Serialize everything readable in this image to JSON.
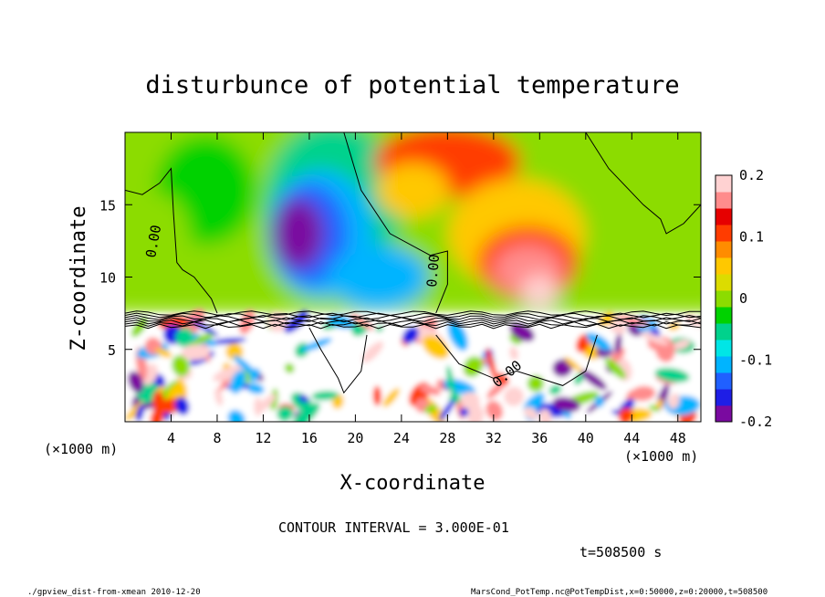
{
  "chart_data": {
    "type": "heatmap",
    "title": "disturbunce of potential temperature",
    "xlabel": "X-coordinate",
    "ylabel": "Z-coordinate",
    "x_unit": "(×1000 m)",
    "z_unit": "(×1000 m)",
    "xlim": [
      0,
      50
    ],
    "ylim": [
      0,
      20
    ],
    "x_ticks": [
      4,
      8,
      12,
      16,
      20,
      24,
      28,
      32,
      36,
      40,
      44,
      48
    ],
    "y_ticks": [
      5,
      10,
      15
    ],
    "colorbar": {
      "min": -0.2,
      "max": 0.2,
      "ticks": [
        "0.2",
        "0.1",
        "0",
        "-0.1",
        "-0.2"
      ],
      "tick_values": [
        0.2,
        0.1,
        0,
        -0.1,
        -0.2
      ],
      "colors": [
        "#7a0aa0",
        "#1e1ee6",
        "#2060ff",
        "#00b4ff",
        "#00e6e6",
        "#00d28c",
        "#00d200",
        "#8cdc00",
        "#dcdc00",
        "#ffc800",
        "#ff8c00",
        "#ff3c00",
        "#e60000",
        "#ff8c8c",
        "#ffd2d2"
      ]
    },
    "field_features": [
      {
        "feature": "negative anomaly",
        "x": 16,
        "z": 13.5,
        "value": -0.2
      },
      {
        "feature": "positive anomaly",
        "x": 35,
        "z": 11,
        "value": 0.2
      },
      {
        "feature": "positive anomaly",
        "x": 27,
        "z": 18.5,
        "value": 0.1
      },
      {
        "feature": "turbulent layer",
        "z_top": 7.5
      }
    ],
    "contour_labels": [
      "0.00",
      "0.00",
      "0.00"
    ],
    "annotations": {
      "contour_interval": "CONTOUR INTERVAL = 3.000E-01",
      "time": "t=508500 s"
    }
  },
  "footer": {
    "left": "./gpview_dist-from-xmean  2010-12-20",
    "right": "MarsCond_PotTemp.nc@PotTempDist,x=0:50000,z=0:20000,t=508500"
  },
  "colors": {
    "background": "#ffffff",
    "frame": "#000000",
    "contour": "#000000"
  }
}
